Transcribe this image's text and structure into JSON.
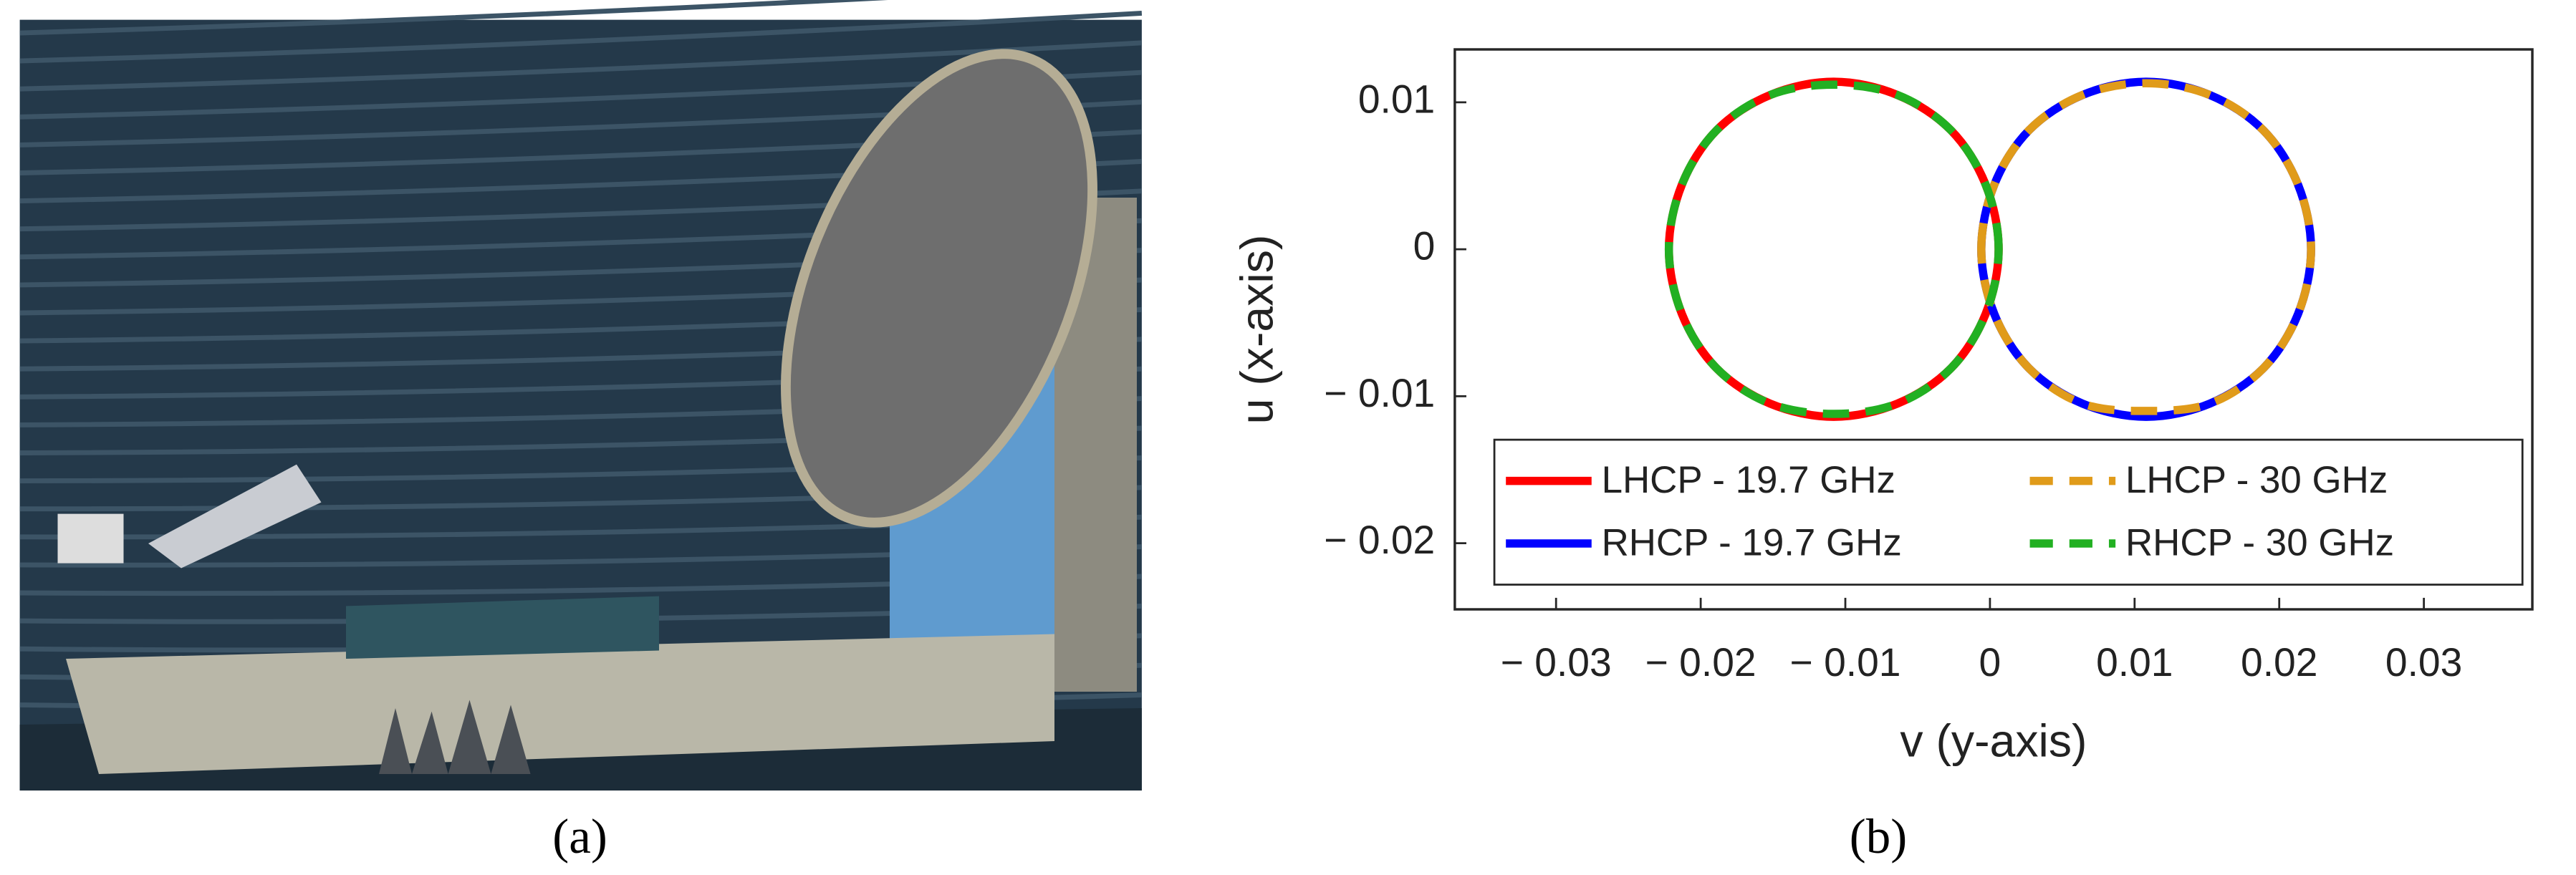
{
  "photo": {
    "caption": "(a)"
  },
  "chart_data": {
    "type": "line",
    "caption": "(b)",
    "xlabel": "v (y-axis)",
    "ylabel": "u (x-axis)",
    "xlim": [
      -0.037,
      0.0375
    ],
    "ylim": [
      -0.0245,
      0.0136
    ],
    "xticks": [
      {
        "value": -0.03,
        "label": "− 0.03"
      },
      {
        "value": -0.02,
        "label": "− 0.02"
      },
      {
        "value": -0.01,
        "label": "− 0.01"
      },
      0,
      0.01,
      0.02,
      0.03
    ],
    "yticks": [
      {
        "value": -0.02,
        "label": "− 0.02"
      },
      {
        "value": -0.01,
        "label": "− 0.01"
      },
      0,
      0.01
    ],
    "legend_loc": "lower right",
    "legend_columns": 2,
    "series": [
      {
        "name": "LHCP - 19.7 GHz",
        "color": "#ff0000",
        "linestyle": "solid",
        "x": [
          0.0006,
          -0.0003,
          -0.0027,
          -0.0064,
          -0.0108,
          -0.0152,
          -0.0189,
          -0.0213,
          -0.0222,
          -0.0213,
          -0.0189,
          -0.0152,
          -0.0108,
          -0.0064,
          -0.0027,
          -0.0003,
          0.0006
        ],
        "values": [
          0,
          0.0044,
          0.0081,
          0.0105,
          0.0114,
          0.0105,
          0.0081,
          0.0044,
          0,
          -0.0044,
          -0.0081,
          -0.0105,
          -0.0114,
          -0.0105,
          -0.0081,
          -0.0044,
          0
        ]
      },
      {
        "name": "RHCP - 19.7 GHz",
        "color": "#0000ff",
        "linestyle": "solid",
        "x": [
          -0.0006,
          0.0003,
          0.0027,
          0.0064,
          0.0108,
          0.0152,
          0.0189,
          0.0213,
          0.0222,
          0.0213,
          0.0189,
          0.0152,
          0.0108,
          0.0064,
          0.0027,
          0.0003,
          -0.0006
        ],
        "values": [
          0,
          0.0044,
          0.0081,
          0.0105,
          0.0114,
          0.0105,
          0.0081,
          0.0044,
          0,
          -0.0044,
          -0.0081,
          -0.0105,
          -0.0114,
          -0.0105,
          -0.0081,
          -0.0044,
          0
        ]
      },
      {
        "name": "LHCP - 30 GHz",
        "color": "#e09b1a",
        "linestyle": "dashed",
        "x": [
          -0.0006,
          0.0003,
          0.0027,
          0.0064,
          0.0108,
          0.0152,
          0.0189,
          0.0213,
          0.0222,
          0.0213,
          0.0189,
          0.0152,
          0.0108,
          0.0064,
          0.0027,
          0.0003,
          -0.0006
        ],
        "values": [
          0,
          0.0044,
          0.0081,
          0.0105,
          0.0113,
          0.0105,
          0.0081,
          0.0044,
          0,
          -0.0044,
          -0.0081,
          -0.0105,
          -0.011,
          -0.0105,
          -0.0081,
          -0.0044,
          0
        ]
      },
      {
        "name": "RHCP - 30 GHz",
        "color": "#22b022",
        "linestyle": "dashed",
        "x": [
          0.0006,
          -0.0003,
          -0.0027,
          -0.0064,
          -0.0108,
          -0.0152,
          -0.0189,
          -0.0213,
          -0.0222,
          -0.0213,
          -0.0189,
          -0.0152,
          -0.0108,
          -0.0064,
          -0.0027,
          -0.0003,
          0.0006
        ],
        "values": [
          0,
          0.0044,
          0.0081,
          0.0105,
          0.0112,
          0.0105,
          0.0081,
          0.0044,
          0,
          -0.0044,
          -0.0081,
          -0.0105,
          -0.0112,
          -0.0105,
          -0.0081,
          -0.0044,
          0
        ]
      }
    ]
  }
}
